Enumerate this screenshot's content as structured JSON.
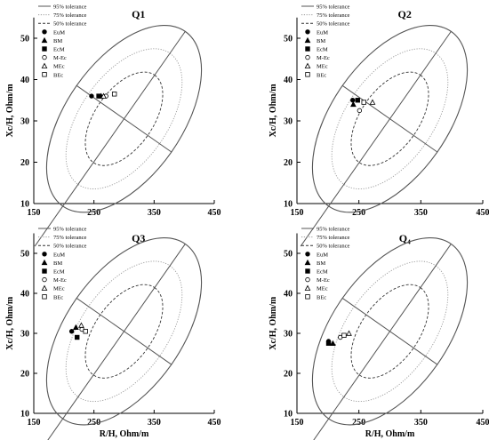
{
  "chart_data": [
    {
      "type": "scatter",
      "title": "Q1",
      "xlabel": "",
      "ylabel": "Xc/H, Ohm/m",
      "xlim": [
        150,
        450
      ],
      "ylim": [
        10,
        55
      ],
      "xticks": [
        "150",
        "250",
        "350",
        "450"
      ],
      "yticks": [
        "10",
        "20",
        "30",
        "40",
        "50"
      ],
      "legend": [
        "95% tolerance",
        "75% tolerance",
        "50% tolerance",
        "EuM",
        "BM",
        "EcM",
        "M-Ec",
        "MEc",
        "BEc"
      ],
      "ellipse_center": [
        300,
        30.5
      ],
      "series": [
        {
          "name": "EuM",
          "marker": "filled-circle",
          "x": 246,
          "y": 36
        },
        {
          "name": "BM",
          "marker": "filled-triangle",
          "x": 262,
          "y": 36
        },
        {
          "name": "EcM",
          "marker": "filled-square",
          "x": 258,
          "y": 36
        },
        {
          "name": "M-Ec",
          "marker": "open-circle",
          "x": 270,
          "y": 36
        },
        {
          "name": "MEc",
          "marker": "open-triangle",
          "x": 266,
          "y": 36
        },
        {
          "name": "BEc",
          "marker": "open-square",
          "x": 284,
          "y": 36.5
        }
      ]
    },
    {
      "type": "scatter",
      "title": "Q2",
      "xlabel": "",
      "ylabel": "Xc/H, Ohm/m",
      "xlim": [
        150,
        450
      ],
      "ylim": [
        10,
        55
      ],
      "xticks": [
        "150",
        "250",
        "350",
        "450"
      ],
      "yticks": [
        "10",
        "20",
        "30",
        "40",
        "50"
      ],
      "legend": [
        "95% tolerance",
        "75% tolerance",
        "50% tolerance",
        "EuM",
        "BM",
        "EcM",
        "M-Ec",
        "MEc",
        "BEc"
      ],
      "ellipse_center": [
        300,
        30.5
      ],
      "series": [
        {
          "name": "EuM",
          "marker": "filled-circle",
          "x": 240,
          "y": 35
        },
        {
          "name": "BM",
          "marker": "filled-triangle",
          "x": 241,
          "y": 34
        },
        {
          "name": "EcM",
          "marker": "filled-square",
          "x": 248,
          "y": 35
        },
        {
          "name": "M-Ec",
          "marker": "open-circle",
          "x": 251,
          "y": 32.5
        },
        {
          "name": "MEc",
          "marker": "open-triangle",
          "x": 272,
          "y": 34.5
        },
        {
          "name": "BEc",
          "marker": "open-square",
          "x": 258,
          "y": 34.5
        }
      ]
    },
    {
      "type": "scatter",
      "title": "Q3",
      "xlabel": "R/H, Ohm/m",
      "ylabel": "Xc/H, Ohm/m",
      "xlim": [
        150,
        450
      ],
      "ylim": [
        10,
        55
      ],
      "xticks": [
        "150",
        "250",
        "350",
        "450"
      ],
      "yticks": [
        "10",
        "20",
        "30",
        "40",
        "50"
      ],
      "legend": [
        "95% tolerance",
        "75% tolerance",
        "50% tolerance",
        "EuM",
        "BM",
        "EcM",
        "M-Ec",
        "MEc",
        "BEc"
      ],
      "ellipse_center": [
        300,
        30.5
      ],
      "series": [
        {
          "name": "EuM",
          "marker": "filled-circle",
          "x": 213,
          "y": 30.5
        },
        {
          "name": "BM",
          "marker": "filled-triangle",
          "x": 220,
          "y": 31.5
        },
        {
          "name": "EcM",
          "marker": "filled-square",
          "x": 222,
          "y": 29
        },
        {
          "name": "M-Ec",
          "marker": "open-circle",
          "x": 230,
          "y": 31
        },
        {
          "name": "MEc",
          "marker": "open-triangle",
          "x": 229,
          "y": 32
        },
        {
          "name": "BEc",
          "marker": "open-square",
          "x": 236,
          "y": 30.5
        }
      ]
    },
    {
      "type": "scatter",
      "title": "Q₄",
      "xlabel": "R/H, Ohm/m",
      "ylabel": "Xc/H, Ohm/m",
      "xlim": [
        150,
        450
      ],
      "ylim": [
        10,
        55
      ],
      "xticks": [
        "150",
        "250",
        "350",
        "450"
      ],
      "yticks": [
        "10",
        "20",
        "30",
        "40",
        "50"
      ],
      "legend": [
        "95% tolerance",
        "75% tolerance",
        "50% tolerance",
        "EuM",
        "BM",
        "EcM",
        "M-Ec",
        "MEc",
        "BEc"
      ],
      "ellipse_center": [
        300,
        30.5
      ],
      "series": [
        {
          "name": "EuM",
          "marker": "filled-circle",
          "x": 201,
          "y": 28
        },
        {
          "name": "BM",
          "marker": "filled-triangle",
          "x": 208,
          "y": 27.5
        },
        {
          "name": "EcM",
          "marker": "filled-square",
          "x": 201,
          "y": 27.5
        },
        {
          "name": "M-Ec",
          "marker": "open-circle",
          "x": 220,
          "y": 29
        },
        {
          "name": "MEc",
          "marker": "open-triangle",
          "x": 234,
          "y": 30
        },
        {
          "name": "BEc",
          "marker": "open-square",
          "x": 226,
          "y": 29.5
        }
      ]
    }
  ]
}
